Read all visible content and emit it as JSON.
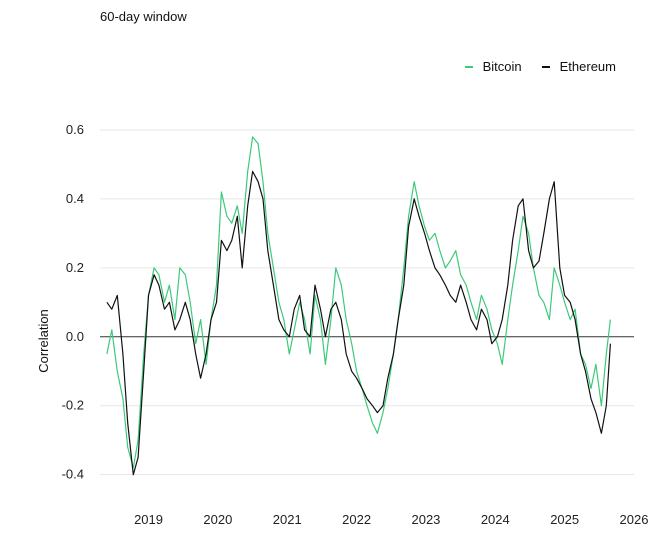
{
  "subtitle": "60-day window",
  "colors": {
    "bitcoin": "#3ec97a",
    "ethereum": "#111111",
    "grid": "#e6e6e6",
    "zero": "#333333"
  },
  "chart_data": {
    "type": "line",
    "title": "",
    "subtitle": "60-day window",
    "xlabel": "",
    "ylabel": "Correlation",
    "ylim": [
      -0.43,
      0.6
    ],
    "xlim": [
      2018.3,
      2026.0
    ],
    "y_ticks": [
      -0.4,
      -0.2,
      0.0,
      0.2,
      0.4,
      0.6
    ],
    "y_tick_labels": [
      "-0.4",
      "-0.2",
      "0.0",
      "0.2",
      "0.4",
      "0.6"
    ],
    "x_ticks": [
      2019,
      2020,
      2021,
      2022,
      2023,
      2024,
      2025,
      2026
    ],
    "x_tick_labels": [
      "2019",
      "2020",
      "2021",
      "2022",
      "2023",
      "2024",
      "2025",
      "2026"
    ],
    "grid": true,
    "legend_position": "top-right",
    "series": [
      {
        "name": "Bitcoin",
        "color": "#3ec97a",
        "x": [
          2018.4,
          2018.47,
          2018.55,
          2018.63,
          2018.7,
          2018.78,
          2018.85,
          2018.93,
          2019.0,
          2019.08,
          2019.15,
          2019.23,
          2019.3,
          2019.38,
          2019.45,
          2019.53,
          2019.6,
          2019.68,
          2019.75,
          2019.83,
          2019.9,
          2019.98,
          2020.05,
          2020.13,
          2020.2,
          2020.28,
          2020.35,
          2020.43,
          2020.5,
          2020.58,
          2020.65,
          2020.72,
          2020.8,
          2020.88,
          2020.95,
          2021.03,
          2021.1,
          2021.18,
          2021.25,
          2021.33,
          2021.4,
          2021.48,
          2021.55,
          2021.63,
          2021.7,
          2021.78,
          2021.85,
          2021.93,
          2022.0,
          2022.08,
          2022.15,
          2022.23,
          2022.3,
          2022.38,
          2022.45,
          2022.53,
          2022.6,
          2022.68,
          2022.75,
          2022.83,
          2022.9,
          2022.98,
          2023.05,
          2023.13,
          2023.2,
          2023.28,
          2023.35,
          2023.43,
          2023.5,
          2023.58,
          2023.65,
          2023.73,
          2023.8,
          2023.88,
          2023.95,
          2024.03,
          2024.1,
          2024.18,
          2024.25,
          2024.33,
          2024.4,
          2024.48,
          2024.55,
          2024.63,
          2024.7,
          2024.78,
          2024.85,
          2024.93,
          2025.0,
          2025.08,
          2025.15,
          2025.23,
          2025.3,
          2025.38,
          2025.45,
          2025.53,
          2025.6,
          2025.66
        ],
        "values": [
          -0.05,
          0.02,
          -0.1,
          -0.18,
          -0.32,
          -0.38,
          -0.3,
          -0.05,
          0.12,
          0.2,
          0.18,
          0.1,
          0.15,
          0.05,
          0.2,
          0.18,
          0.1,
          -0.02,
          0.05,
          -0.08,
          0.05,
          0.15,
          0.42,
          0.35,
          0.33,
          0.38,
          0.3,
          0.48,
          0.58,
          0.56,
          0.45,
          0.3,
          0.2,
          0.1,
          0.05,
          -0.05,
          0.02,
          0.1,
          0.05,
          -0.05,
          0.12,
          0.05,
          -0.08,
          0.05,
          0.2,
          0.15,
          0.05,
          -0.02,
          -0.1,
          -0.15,
          -0.2,
          -0.25,
          -0.28,
          -0.22,
          -0.15,
          -0.05,
          0.05,
          0.2,
          0.35,
          0.45,
          0.38,
          0.32,
          0.28,
          0.3,
          0.25,
          0.2,
          0.22,
          0.25,
          0.18,
          0.15,
          0.1,
          0.05,
          0.12,
          0.08,
          0.02,
          -0.02,
          -0.08,
          0.05,
          0.15,
          0.25,
          0.35,
          0.3,
          0.2,
          0.12,
          0.1,
          0.05,
          0.2,
          0.15,
          0.1,
          0.05,
          0.08,
          -0.05,
          -0.08,
          -0.15,
          -0.08,
          -0.2,
          -0.05,
          0.05
        ]
      },
      {
        "name": "Ethereum",
        "color": "#111111",
        "x": [
          2018.4,
          2018.47,
          2018.55,
          2018.63,
          2018.7,
          2018.78,
          2018.85,
          2018.93,
          2019.0,
          2019.08,
          2019.15,
          2019.23,
          2019.3,
          2019.38,
          2019.45,
          2019.53,
          2019.6,
          2019.68,
          2019.75,
          2019.83,
          2019.9,
          2019.98,
          2020.05,
          2020.13,
          2020.2,
          2020.28,
          2020.35,
          2020.43,
          2020.5,
          2020.58,
          2020.65,
          2020.72,
          2020.8,
          2020.88,
          2020.95,
          2021.03,
          2021.1,
          2021.18,
          2021.25,
          2021.33,
          2021.4,
          2021.48,
          2021.55,
          2021.63,
          2021.7,
          2021.78,
          2021.85,
          2021.93,
          2022.0,
          2022.08,
          2022.15,
          2022.23,
          2022.3,
          2022.38,
          2022.45,
          2022.53,
          2022.6,
          2022.68,
          2022.75,
          2022.83,
          2022.9,
          2022.98,
          2023.05,
          2023.13,
          2023.2,
          2023.28,
          2023.35,
          2023.43,
          2023.5,
          2023.58,
          2023.65,
          2023.73,
          2023.8,
          2023.88,
          2023.95,
          2024.03,
          2024.1,
          2024.18,
          2024.25,
          2024.33,
          2024.4,
          2024.48,
          2024.55,
          2024.63,
          2024.7,
          2024.78,
          2024.85,
          2024.93,
          2025.0,
          2025.08,
          2025.15,
          2025.23,
          2025.3,
          2025.38,
          2025.45,
          2025.53,
          2025.6,
          2025.66
        ],
        "values": [
          0.1,
          0.08,
          0.12,
          -0.05,
          -0.25,
          -0.4,
          -0.35,
          -0.1,
          0.12,
          0.18,
          0.15,
          0.08,
          0.1,
          0.02,
          0.05,
          0.1,
          0.05,
          -0.05,
          -0.12,
          -0.05,
          0.05,
          0.1,
          0.28,
          0.25,
          0.28,
          0.35,
          0.2,
          0.38,
          0.48,
          0.45,
          0.4,
          0.25,
          0.15,
          0.05,
          0.02,
          0.0,
          0.08,
          0.12,
          0.02,
          0.0,
          0.15,
          0.08,
          0.0,
          0.08,
          0.1,
          0.05,
          -0.05,
          -0.1,
          -0.12,
          -0.15,
          -0.18,
          -0.2,
          -0.22,
          -0.2,
          -0.12,
          -0.05,
          0.05,
          0.15,
          0.32,
          0.4,
          0.35,
          0.3,
          0.25,
          0.2,
          0.18,
          0.15,
          0.12,
          0.1,
          0.15,
          0.1,
          0.05,
          0.02,
          0.08,
          0.05,
          -0.02,
          0.0,
          0.05,
          0.15,
          0.28,
          0.38,
          0.4,
          0.25,
          0.2,
          0.22,
          0.3,
          0.4,
          0.45,
          0.2,
          0.12,
          0.1,
          0.05,
          -0.05,
          -0.1,
          -0.18,
          -0.22,
          -0.28,
          -0.2,
          -0.02
        ]
      }
    ]
  }
}
